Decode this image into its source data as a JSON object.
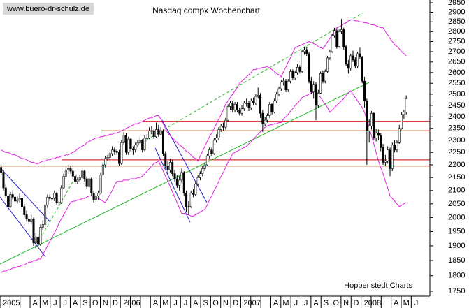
{
  "chart_data": {
    "type": "candlestick",
    "title": "Nasdaq compx Wochenchart",
    "watermark": "www.buero-dr-schulz.de",
    "source": "Hoppenstedt Charts",
    "log": true,
    "ylim": [
      1750,
      2950
    ],
    "yticks": [
      1750,
      1800,
      1850,
      1900,
      1950,
      2000,
      2050,
      2100,
      2150,
      2200,
      2250,
      2300,
      2350,
      2400,
      2450,
      2500,
      2550,
      2600,
      2650,
      2700,
      2750,
      2800,
      2850,
      2900,
      2950
    ],
    "x_labels": [
      "2005",
      null,
      null,
      "A",
      "M",
      "J",
      "J",
      "A",
      "S",
      "O",
      "N",
      "D",
      "2006",
      null,
      null,
      "A",
      "M",
      "J",
      "J",
      "A",
      "S",
      "O",
      "N",
      "D",
      "2007",
      null,
      null,
      "A",
      "M",
      "J",
      "J",
      "A",
      "S",
      "O",
      "N",
      "D",
      "2008",
      null,
      null,
      "A",
      "M",
      "J"
    ],
    "candle_color": "#000000",
    "band_color": "#e020e0",
    "ohlc": [
      [
        2190,
        2200,
        2160,
        2170
      ],
      [
        2170,
        2180,
        2100,
        2110
      ],
      [
        2110,
        2125,
        2070,
        2080
      ],
      [
        2080,
        2090,
        2030,
        2040
      ],
      [
        2040,
        2095,
        2035,
        2085
      ],
      [
        2085,
        2100,
        2065,
        2075
      ],
      [
        2075,
        2085,
        2050,
        2060
      ],
      [
        2060,
        2080,
        2050,
        2065
      ],
      [
        2065,
        2090,
        2055,
        2070
      ],
      [
        2070,
        2075,
        2030,
        2040
      ],
      [
        2040,
        2050,
        2000,
        2010
      ],
      [
        2010,
        2025,
        1985,
        1995
      ],
      [
        1995,
        2005,
        1975,
        1985
      ],
      [
        1985,
        2010,
        1975,
        1995
      ],
      [
        1995,
        2000,
        1900,
        1910
      ],
      [
        1910,
        1945,
        1895,
        1930
      ],
      [
        1930,
        1940,
        1890,
        1905
      ],
      [
        1905,
        1975,
        1900,
        1965
      ],
      [
        1965,
        1990,
        1955,
        1975
      ],
      [
        1975,
        2055,
        1970,
        2045
      ],
      [
        2045,
        2085,
        2035,
        2075
      ],
      [
        2075,
        2085,
        2060,
        2070
      ],
      [
        2070,
        2085,
        2055,
        2070
      ],
      [
        2070,
        2100,
        2060,
        2090
      ],
      [
        2090,
        2095,
        2045,
        2055
      ],
      [
        2055,
        2070,
        2040,
        2055
      ],
      [
        2055,
        2120,
        2050,
        2110
      ],
      [
        2110,
        2165,
        2105,
        2155
      ],
      [
        2155,
        2190,
        2145,
        2180
      ],
      [
        2180,
        2200,
        2165,
        2185
      ],
      [
        2185,
        2195,
        2165,
        2175
      ],
      [
        2175,
        2185,
        2145,
        2155
      ],
      [
        2155,
        2165,
        2125,
        2135
      ],
      [
        2135,
        2150,
        2125,
        2140
      ],
      [
        2140,
        2160,
        2130,
        2150
      ],
      [
        2150,
        2185,
        2140,
        2175
      ],
      [
        2175,
        2180,
        2135,
        2145
      ],
      [
        2145,
        2155,
        2105,
        2115
      ],
      [
        2115,
        2155,
        2105,
        2145
      ],
      [
        2145,
        2150,
        2080,
        2090
      ],
      [
        2090,
        2100,
        2055,
        2065
      ],
      [
        2065,
        2095,
        2050,
        2080
      ],
      [
        2080,
        2100,
        2065,
        2090
      ],
      [
        2090,
        2170,
        2085,
        2160
      ],
      [
        2160,
        2210,
        2150,
        2200
      ],
      [
        2200,
        2235,
        2190,
        2225
      ],
      [
        2225,
        2240,
        2215,
        2230
      ],
      [
        2230,
        2255,
        2220,
        2245
      ],
      [
        2245,
        2275,
        2235,
        2260
      ],
      [
        2260,
        2270,
        2240,
        2255
      ],
      [
        2255,
        2265,
        2240,
        2250
      ],
      [
        2250,
        2260,
        2195,
        2205
      ],
      [
        2205,
        2300,
        2200,
        2290
      ],
      [
        2290,
        2335,
        2280,
        2320
      ],
      [
        2320,
        2330,
        2240,
        2250
      ],
      [
        2250,
        2315,
        2240,
        2305
      ],
      [
        2305,
        2310,
        2255,
        2265
      ],
      [
        2265,
        2275,
        2240,
        2260
      ],
      [
        2260,
        2290,
        2250,
        2280
      ],
      [
        2280,
        2300,
        2270,
        2290
      ],
      [
        2290,
        2315,
        2285,
        2300
      ],
      [
        2300,
        2305,
        2250,
        2260
      ],
      [
        2260,
        2320,
        2255,
        2310
      ],
      [
        2310,
        2325,
        2295,
        2310
      ],
      [
        2310,
        2355,
        2305,
        2340
      ],
      [
        2340,
        2360,
        2325,
        2340
      ],
      [
        2340,
        2350,
        2305,
        2315
      ],
      [
        2315,
        2375,
        2310,
        2345
      ],
      [
        2345,
        2365,
        2315,
        2325
      ],
      [
        2325,
        2355,
        2320,
        2340
      ],
      [
        2340,
        2345,
        2235,
        2245
      ],
      [
        2245,
        2255,
        2185,
        2195
      ],
      [
        2195,
        2215,
        2165,
        2180
      ],
      [
        2180,
        2225,
        2170,
        2210
      ],
      [
        2210,
        2220,
        2155,
        2165
      ],
      [
        2165,
        2180,
        2135,
        2145
      ],
      [
        2145,
        2160,
        2110,
        2120
      ],
      [
        2120,
        2155,
        2100,
        2140
      ],
      [
        2140,
        2185,
        2130,
        2170
      ],
      [
        2170,
        2175,
        2080,
        2090
      ],
      [
        2090,
        2100,
        2020,
        2040
      ],
      [
        2040,
        2060,
        2010,
        2040
      ],
      [
        2040,
        2100,
        2035,
        2090
      ],
      [
        2090,
        2105,
        2075,
        2085
      ],
      [
        2085,
        2135,
        2080,
        2125
      ],
      [
        2125,
        2160,
        2115,
        2150
      ],
      [
        2150,
        2175,
        2140,
        2165
      ],
      [
        2165,
        2195,
        2155,
        2185
      ],
      [
        2185,
        2210,
        2175,
        2200
      ],
      [
        2200,
        2245,
        2195,
        2235
      ],
      [
        2235,
        2270,
        2225,
        2260
      ],
      [
        2260,
        2270,
        2235,
        2245
      ],
      [
        2245,
        2310,
        2240,
        2300
      ],
      [
        2300,
        2325,
        2290,
        2310
      ],
      [
        2310,
        2355,
        2300,
        2345
      ],
      [
        2345,
        2370,
        2335,
        2360
      ],
      [
        2360,
        2375,
        2340,
        2355
      ],
      [
        2355,
        2395,
        2345,
        2385
      ],
      [
        2385,
        2455,
        2380,
        2445
      ],
      [
        2445,
        2470,
        2430,
        2460
      ],
      [
        2460,
        2470,
        2420,
        2430
      ],
      [
        2430,
        2465,
        2420,
        2455
      ],
      [
        2455,
        2465,
        2420,
        2430
      ],
      [
        2430,
        2440,
        2405,
        2415
      ],
      [
        2415,
        2450,
        2405,
        2435
      ],
      [
        2435,
        2470,
        2425,
        2460
      ],
      [
        2460,
        2480,
        2445,
        2460
      ],
      [
        2460,
        2470,
        2425,
        2440
      ],
      [
        2440,
        2480,
        2430,
        2470
      ],
      [
        2470,
        2485,
        2450,
        2460
      ],
      [
        2460,
        2500,
        2450,
        2490
      ],
      [
        2490,
        2530,
        2480,
        2495
      ],
      [
        2495,
        2505,
        2395,
        2415
      ],
      [
        2415,
        2430,
        2335,
        2370
      ],
      [
        2370,
        2400,
        2360,
        2385
      ],
      [
        2385,
        2415,
        2375,
        2405
      ],
      [
        2405,
        2465,
        2395,
        2455
      ],
      [
        2455,
        2460,
        2410,
        2420
      ],
      [
        2420,
        2480,
        2415,
        2470
      ],
      [
        2470,
        2510,
        2460,
        2500
      ],
      [
        2500,
        2535,
        2490,
        2525
      ],
      [
        2525,
        2565,
        2515,
        2555
      ],
      [
        2555,
        2575,
        2540,
        2560
      ],
      [
        2560,
        2570,
        2510,
        2520
      ],
      [
        2520,
        2570,
        2510,
        2560
      ],
      [
        2560,
        2615,
        2550,
        2605
      ],
      [
        2605,
        2615,
        2565,
        2575
      ],
      [
        2575,
        2610,
        2565,
        2600
      ],
      [
        2600,
        2640,
        2590,
        2625
      ],
      [
        2625,
        2635,
        2595,
        2605
      ],
      [
        2605,
        2710,
        2600,
        2700
      ],
      [
        2700,
        2725,
        2685,
        2710
      ],
      [
        2710,
        2725,
        2680,
        2690
      ],
      [
        2690,
        2700,
        2550,
        2560
      ],
      [
        2560,
        2580,
        2500,
        2510
      ],
      [
        2510,
        2560,
        2480,
        2545
      ],
      [
        2545,
        2555,
        2385,
        2450
      ],
      [
        2450,
        2520,
        2440,
        2505
      ],
      [
        2505,
        2605,
        2500,
        2595
      ],
      [
        2595,
        2610,
        2550,
        2560
      ],
      [
        2560,
        2615,
        2550,
        2605
      ],
      [
        2605,
        2680,
        2600,
        2670
      ],
      [
        2670,
        2710,
        2660,
        2700
      ],
      [
        2700,
        2790,
        2695,
        2780
      ],
      [
        2780,
        2820,
        2770,
        2805
      ],
      [
        2805,
        2815,
        2715,
        2725
      ],
      [
        2725,
        2810,
        2720,
        2800
      ],
      [
        2800,
        2865,
        2790,
        2810
      ],
      [
        2810,
        2820,
        2710,
        2725
      ],
      [
        2725,
        2735,
        2630,
        2640
      ],
      [
        2640,
        2660,
        2595,
        2620
      ],
      [
        2620,
        2690,
        2610,
        2680
      ],
      [
        2680,
        2705,
        2650,
        2660
      ],
      [
        2660,
        2675,
        2620,
        2630
      ],
      [
        2630,
        2700,
        2620,
        2690
      ],
      [
        2690,
        2720,
        2665,
        2675
      ],
      [
        2675,
        2680,
        2550,
        2560
      ],
      [
        2560,
        2580,
        2440,
        2470
      ],
      [
        2470,
        2480,
        2200,
        2340
      ],
      [
        2340,
        2390,
        2290,
        2360
      ],
      [
        2360,
        2425,
        2345,
        2415
      ],
      [
        2415,
        2420,
        2300,
        2310
      ],
      [
        2310,
        2350,
        2295,
        2330
      ],
      [
        2330,
        2345,
        2300,
        2320
      ],
      [
        2320,
        2330,
        2255,
        2270
      ],
      [
        2270,
        2285,
        2200,
        2210
      ],
      [
        2210,
        2240,
        2195,
        2215
      ],
      [
        2215,
        2275,
        2205,
        2260
      ],
      [
        2260,
        2270,
        2155,
        2185
      ],
      [
        2185,
        2290,
        2175,
        2280
      ],
      [
        2280,
        2300,
        2250,
        2260
      ],
      [
        2260,
        2300,
        2250,
        2290
      ],
      [
        2290,
        2365,
        2285,
        2350
      ],
      [
        2350,
        2420,
        2345,
        2410
      ],
      [
        2410,
        2430,
        2390,
        2420
      ],
      [
        2420,
        2495,
        2410,
        2480
      ]
    ],
    "upper_band": [
      2260,
      2255,
      2250,
      2250,
      2245,
      2240,
      2240,
      2235,
      2230,
      2225,
      2225,
      2220,
      2215,
      2210,
      2210,
      2205,
      2205,
      2210,
      2215,
      2215,
      2220,
      2220,
      2225,
      2225,
      2230,
      2230,
      2235,
      2235,
      2240,
      2240,
      2245,
      2250,
      2255,
      2265,
      2270,
      2275,
      2280,
      2290,
      2295,
      2300,
      2305,
      2310,
      2310,
      2315,
      2315,
      2320,
      2320,
      2325,
      2325,
      2330,
      2330,
      2335,
      2340,
      2345,
      2350,
      2355,
      2360,
      2365,
      2370,
      2370,
      2375,
      2380,
      2385,
      2390,
      2395,
      2395,
      2400,
      2405,
      2405,
      2390,
      2370,
      2350,
      2330,
      2320,
      2310,
      2300,
      2290,
      2280,
      2275,
      2265,
      2255,
      2250,
      2240,
      2230,
      2225,
      2215,
      2235,
      2255,
      2275,
      2295,
      2315,
      2330,
      2350,
      2370,
      2390,
      2410,
      2430,
      2455,
      2470,
      2485,
      2500,
      2515,
      2530,
      2550,
      2560,
      2570,
      2580,
      2590,
      2600,
      2615,
      2615,
      2620,
      2620,
      2625,
      2625,
      2630,
      2620,
      2615,
      2605,
      2595,
      2590,
      2580,
      2605,
      2625,
      2650,
      2670,
      2695,
      2720,
      2725,
      2730,
      2735,
      2740,
      2745,
      2750,
      2745,
      2740,
      2735,
      2725,
      2720,
      2715,
      2730,
      2750,
      2765,
      2785,
      2800,
      2820,
      2825,
      2830,
      2840,
      2845,
      2855,
      2860,
      2860,
      2855,
      2855,
      2850,
      2850,
      2845,
      2845,
      2840,
      2835,
      2835,
      2830,
      2825,
      2820,
      2820,
      2800,
      2785,
      2765,
      2750,
      2735,
      2725,
      2715,
      2700,
      2690,
      2680
    ],
    "lower_band": [
      1810,
      1815,
      1815,
      1820,
      1820,
      1825,
      1825,
      1830,
      1830,
      1835,
      1835,
      1840,
      1845,
      1845,
      1850,
      1850,
      1855,
      1855,
      1870,
      1885,
      1900,
      1915,
      1930,
      1945,
      1960,
      1980,
      1995,
      2010,
      2025,
      2040,
      2055,
      2060,
      2060,
      2065,
      2065,
      2070,
      2070,
      2075,
      2080,
      2080,
      2075,
      2075,
      2070,
      2065,
      2060,
      2055,
      2070,
      2085,
      2100,
      2120,
      2135,
      2135,
      2135,
      2140,
      2140,
      2140,
      2145,
      2145,
      2145,
      2150,
      2150,
      2155,
      2165,
      2175,
      2185,
      2195,
      2205,
      2210,
      2215,
      2195,
      2175,
      2155,
      2135,
      2115,
      2095,
      2075,
      2055,
      2035,
      2015,
      2015,
      2010,
      2010,
      2005,
      2005,
      2010,
      2015,
      2020,
      2025,
      2030,
      2045,
      2065,
      2080,
      2100,
      2115,
      2135,
      2155,
      2170,
      2190,
      2210,
      2225,
      2245,
      2250,
      2255,
      2260,
      2265,
      2270,
      2275,
      2285,
      2295,
      2305,
      2315,
      2325,
      2335,
      2345,
      2355,
      2360,
      2365,
      2365,
      2370,
      2370,
      2375,
      2375,
      2390,
      2400,
      2410,
      2425,
      2435,
      2450,
      2460,
      2470,
      2485,
      2490,
      2495,
      2500,
      2505,
      2510,
      2515,
      2500,
      2485,
      2470,
      2455,
      2440,
      2420,
      2430,
      2440,
      2450,
      2460,
      2470,
      2480,
      2495,
      2505,
      2515,
      2500,
      2485,
      2470,
      2455,
      2440,
      2420,
      2385,
      2350,
      2320,
      2285,
      2250,
      2215,
      2190,
      2165,
      2135,
      2110,
      2080,
      2070,
      2060,
      2050,
      2040,
      2045,
      2050,
      2055
    ]
  }
}
